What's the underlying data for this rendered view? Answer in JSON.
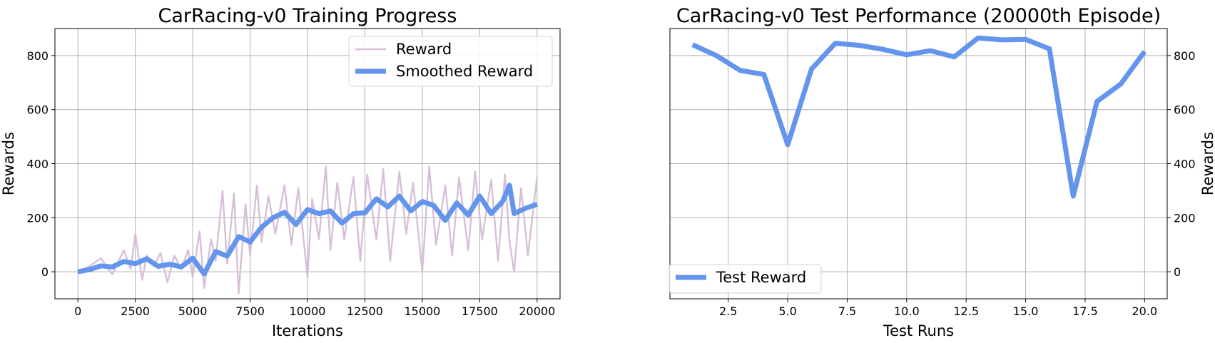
{
  "charts": {
    "training": {
      "type": "line",
      "title": "CarRacing-v0 Training Progress",
      "xlabel": "Iterations",
      "ylabel": "Rewards",
      "xlim": [
        -1000,
        21000
      ],
      "ylim": [
        -100,
        900
      ],
      "xticks": [
        0,
        2500,
        5000,
        7500,
        10000,
        12500,
        15000,
        17500,
        20000
      ],
      "yticks": [
        0,
        200,
        400,
        600,
        800
      ],
      "grid": true,
      "legend_position": "upper right",
      "legend": [
        "Reward",
        "Smoothed Reward"
      ],
      "series": [
        {
          "name": "Reward",
          "color": "#d8bfd8",
          "x": [
            0,
            500,
            1000,
            1500,
            2000,
            2300,
            2500,
            2800,
            3000,
            3300,
            3600,
            3900,
            4200,
            4500,
            4800,
            5000,
            5300,
            5500,
            5800,
            6000,
            6300,
            6500,
            6800,
            7000,
            7300,
            7500,
            7800,
            8000,
            8300,
            8600,
            9000,
            9300,
            9600,
            10000,
            10200,
            10500,
            10800,
            11000,
            11300,
            11600,
            12000,
            12300,
            12600,
            13000,
            13300,
            13600,
            14000,
            14300,
            14600,
            15000,
            15300,
            15600,
            16000,
            16300,
            16600,
            17000,
            17300,
            17600,
            18000,
            18300,
            18600,
            18800,
            19000,
            19300,
            19600,
            20000
          ],
          "values": [
            0,
            20,
            50,
            -10,
            80,
            10,
            140,
            -30,
            60,
            20,
            70,
            -40,
            60,
            10,
            80,
            -20,
            150,
            -60,
            120,
            40,
            300,
            30,
            290,
            -80,
            250,
            60,
            320,
            110,
            280,
            140,
            320,
            100,
            310,
            -20,
            270,
            120,
            390,
            80,
            330,
            120,
            350,
            40,
            360,
            120,
            380,
            40,
            370,
            140,
            330,
            0,
            390,
            100,
            320,
            60,
            350,
            80,
            370,
            120,
            340,
            40,
            360,
            110,
            0,
            310,
            60,
            350
          ]
        },
        {
          "name": "Smoothed Reward",
          "color": "#6495ed",
          "x": [
            0,
            500,
            1000,
            1500,
            2000,
            2500,
            3000,
            3500,
            4000,
            4500,
            5000,
            5500,
            6000,
            6500,
            7000,
            7500,
            8000,
            8500,
            9000,
            9500,
            10000,
            10500,
            11000,
            11500,
            12000,
            12500,
            13000,
            13500,
            14000,
            14500,
            15000,
            15500,
            16000,
            16500,
            17000,
            17500,
            18000,
            18500,
            18800,
            19000,
            19500,
            20000
          ],
          "values": [
            0,
            8,
            22,
            18,
            38,
            30,
            48,
            20,
            28,
            18,
            50,
            -8,
            75,
            58,
            130,
            110,
            165,
            200,
            220,
            175,
            230,
            215,
            225,
            180,
            215,
            218,
            270,
            240,
            280,
            225,
            260,
            245,
            190,
            255,
            210,
            280,
            215,
            260,
            320,
            215,
            235,
            250
          ]
        }
      ]
    },
    "test": {
      "type": "line",
      "title": "CarRacing-v0 Test Performance (20000th Episode)",
      "xlabel": "Test Runs",
      "ylabel": "Rewards",
      "xlim": [
        0.05,
        20.95
      ],
      "ylim": [
        -100,
        900
      ],
      "xticks": [
        2.5,
        5.0,
        7.5,
        10.0,
        12.5,
        15.0,
        17.5,
        20.0
      ],
      "xtick_labels": [
        "2.5",
        "5.0",
        "7.5",
        "10.0",
        "12.5",
        "15.0",
        "17.5",
        "20.0"
      ],
      "yticks": [
        0,
        200,
        400,
        600,
        800
      ],
      "grid": true,
      "legend_position": "lower left",
      "legend": [
        "Test Reward"
      ],
      "series": [
        {
          "name": "Test Reward",
          "color": "#6495ed",
          "x": [
            1,
            2,
            3,
            4,
            5,
            6,
            7,
            8,
            9,
            10,
            11,
            12,
            13,
            14,
            15,
            16,
            17,
            18,
            19,
            20
          ],
          "values": [
            840,
            800,
            745,
            730,
            470,
            750,
            845,
            838,
            823,
            803,
            818,
            795,
            865,
            858,
            860,
            825,
            280,
            630,
            695,
            815
          ]
        }
      ]
    }
  },
  "chart_data": [
    {
      "type": "line",
      "title": "CarRacing-v0 Training Progress",
      "xlabel": "Iterations",
      "ylabel": "Rewards",
      "xlim": [
        -1000,
        21000
      ],
      "ylim": [
        -100,
        900
      ],
      "grid": true,
      "legend": "upper right",
      "series": [
        {
          "name": "Reward",
          "x": [
            0,
            500,
            1000,
            1500,
            2000,
            2300,
            2500,
            2800,
            3000,
            3300,
            3600,
            3900,
            4200,
            4500,
            4800,
            5000,
            5300,
            5500,
            5800,
            6000,
            6300,
            6500,
            6800,
            7000,
            7300,
            7500,
            7800,
            8000,
            8300,
            8600,
            9000,
            9300,
            9600,
            10000,
            10200,
            10500,
            10800,
            11000,
            11300,
            11600,
            12000,
            12300,
            12600,
            13000,
            13300,
            13600,
            14000,
            14300,
            14600,
            15000,
            15300,
            15600,
            16000,
            16300,
            16600,
            17000,
            17300,
            17600,
            18000,
            18300,
            18600,
            18800,
            19000,
            19300,
            19600,
            20000
          ],
          "values": [
            0,
            20,
            50,
            -10,
            80,
            10,
            140,
            -30,
            60,
            20,
            70,
            -40,
            60,
            10,
            80,
            -20,
            150,
            -60,
            120,
            40,
            300,
            30,
            290,
            -80,
            250,
            60,
            320,
            110,
            280,
            140,
            320,
            100,
            310,
            -20,
            270,
            120,
            390,
            80,
            330,
            120,
            350,
            40,
            360,
            120,
            380,
            40,
            370,
            140,
            330,
            0,
            390,
            100,
            320,
            60,
            350,
            80,
            370,
            120,
            340,
            40,
            360,
            110,
            0,
            310,
            60,
            350
          ]
        },
        {
          "name": "Smoothed Reward",
          "x": [
            0,
            500,
            1000,
            1500,
            2000,
            2500,
            3000,
            3500,
            4000,
            4500,
            5000,
            5500,
            6000,
            6500,
            7000,
            7500,
            8000,
            8500,
            9000,
            9500,
            10000,
            10500,
            11000,
            11500,
            12000,
            12500,
            13000,
            13500,
            14000,
            14500,
            15000,
            15500,
            16000,
            16500,
            17000,
            17500,
            18000,
            18500,
            18800,
            19000,
            19500,
            20000
          ],
          "values": [
            0,
            8,
            22,
            18,
            38,
            30,
            48,
            20,
            28,
            18,
            50,
            -8,
            75,
            58,
            130,
            110,
            165,
            200,
            220,
            175,
            230,
            215,
            225,
            180,
            215,
            218,
            270,
            240,
            280,
            225,
            260,
            245,
            190,
            255,
            210,
            280,
            215,
            260,
            320,
            215,
            235,
            250
          ]
        }
      ]
    },
    {
      "type": "line",
      "title": "CarRacing-v0 Test Performance (20000th Episode)",
      "xlabel": "Test Runs",
      "ylabel": "Rewards",
      "xlim": [
        0.05,
        20.95
      ],
      "ylim": [
        -100,
        900
      ],
      "grid": true,
      "legend": "lower left",
      "series": [
        {
          "name": "Test Reward",
          "x": [
            1,
            2,
            3,
            4,
            5,
            6,
            7,
            8,
            9,
            10,
            11,
            12,
            13,
            14,
            15,
            16,
            17,
            18,
            19,
            20
          ],
          "values": [
            840,
            800,
            745,
            730,
            470,
            750,
            845,
            838,
            823,
            803,
            818,
            795,
            865,
            858,
            860,
            825,
            280,
            630,
            695,
            815
          ]
        }
      ]
    }
  ]
}
